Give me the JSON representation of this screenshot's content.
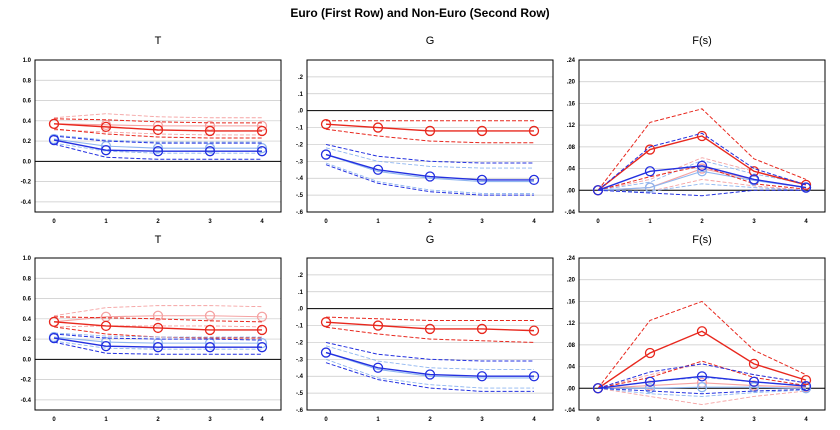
{
  "figure": {
    "title": "Euro (First Row) and Non-Euro (Second Row)"
  },
  "colors": {
    "red": "#e8281e",
    "blue": "#2330e0",
    "light_red": "#f5a3a3",
    "light_blue": "#8fb6f0",
    "grid": "#c8c8c8",
    "zero_line": "#000000"
  },
  "chart_data": [
    {
      "type": "line",
      "title": "T",
      "row": "Euro",
      "x": [
        0,
        1,
        2,
        3,
        4
      ],
      "x_tick_labels": [
        "0",
        "1",
        "2",
        "3",
        "4"
      ],
      "ylim": [
        -0.5,
        1.0
      ],
      "y_ticks": [
        -0.4,
        -0.2,
        0.0,
        0.2,
        0.4,
        0.6,
        0.8,
        1.0
      ],
      "y_tick_labels": [
        "-0.4",
        "-0.2",
        "0.0",
        "0.2",
        "0.4",
        "0.6",
        "0.8",
        "1.0"
      ],
      "zero_line": 0,
      "grid": true,
      "series": [
        {
          "color": "light_red",
          "marker": true,
          "values": [
            0.37,
            0.36,
            0.35,
            0.35,
            0.35
          ],
          "lower": [
            0.31,
            0.29,
            0.27,
            0.26,
            0.26
          ],
          "upper": [
            0.43,
            0.47,
            0.44,
            0.43,
            0.43
          ]
        },
        {
          "color": "red",
          "marker": true,
          "values": [
            0.37,
            0.34,
            0.31,
            0.3,
            0.3
          ],
          "lower": [
            0.32,
            0.27,
            0.24,
            0.23,
            0.23
          ],
          "upper": [
            0.42,
            0.41,
            0.39,
            0.38,
            0.38
          ]
        },
        {
          "color": "light_blue",
          "marker": true,
          "values": [
            0.22,
            0.15,
            0.13,
            0.13,
            0.13
          ],
          "lower": [
            0.18,
            0.1,
            0.08,
            0.08,
            0.08
          ],
          "upper": [
            0.26,
            0.21,
            0.19,
            0.19,
            0.19
          ]
        },
        {
          "color": "blue",
          "marker": true,
          "values": [
            0.21,
            0.11,
            0.1,
            0.1,
            0.1
          ],
          "lower": [
            0.17,
            0.04,
            0.02,
            0.02,
            0.02
          ],
          "upper": [
            0.25,
            0.2,
            0.18,
            0.18,
            0.18
          ]
        }
      ]
    },
    {
      "type": "line",
      "title": "G",
      "row": "Euro",
      "x": [
        0,
        1,
        2,
        3,
        4
      ],
      "x_tick_labels": [
        "0",
        "1",
        "2",
        "3",
        "4"
      ],
      "ylim": [
        -0.6,
        0.3
      ],
      "y_ticks": [
        -0.6,
        -0.5,
        -0.4,
        -0.3,
        -0.2,
        -0.1,
        0.0,
        0.1,
        0.2
      ],
      "y_tick_labels": [
        "-.6",
        "-.5",
        "-.4",
        "-.3",
        "-.2",
        "-.1",
        ".0",
        ".1",
        ".2"
      ],
      "zero_line": 0,
      "grid": true,
      "series": [
        {
          "color": "red",
          "marker": true,
          "values": [
            -0.08,
            -0.1,
            -0.12,
            -0.12,
            -0.12
          ],
          "lower": [
            -0.11,
            -0.15,
            -0.18,
            -0.19,
            -0.19
          ],
          "upper": [
            -0.06,
            -0.06,
            -0.06,
            -0.06,
            -0.06
          ]
        },
        {
          "color": "light_blue",
          "marker": false,
          "values": [
            -0.26,
            -0.36,
            -0.4,
            -0.42,
            -0.42
          ],
          "lower": [
            -0.31,
            -0.42,
            -0.47,
            -0.49,
            -0.49
          ],
          "upper": [
            -0.22,
            -0.3,
            -0.33,
            -0.34,
            -0.34
          ]
        },
        {
          "color": "blue",
          "marker": true,
          "values": [
            -0.26,
            -0.35,
            -0.39,
            -0.41,
            -0.41
          ],
          "lower": [
            -0.32,
            -0.43,
            -0.48,
            -0.5,
            -0.5
          ],
          "upper": [
            -0.2,
            -0.27,
            -0.3,
            -0.31,
            -0.31
          ]
        }
      ]
    },
    {
      "type": "line",
      "title": "F(s)",
      "row": "Euro",
      "x": [
        0,
        1,
        2,
        3,
        4
      ],
      "x_tick_labels": [
        "0",
        "1",
        "2",
        "3",
        "4"
      ],
      "ylim": [
        -0.04,
        0.24
      ],
      "y_ticks": [
        -0.04,
        0.0,
        0.04,
        0.08,
        0.12,
        0.16,
        0.2,
        0.24
      ],
      "y_tick_labels": [
        "-.04",
        ".00",
        ".04",
        ".08",
        ".12",
        ".16",
        ".20",
        ".24"
      ],
      "zero_line": 0,
      "grid": true,
      "series": [
        {
          "color": "light_red",
          "marker": true,
          "values": [
            0.0,
            0.005,
            0.04,
            0.02,
            0.005
          ],
          "lower": [
            0.0,
            -0.002,
            0.02,
            0.008,
            0.0
          ],
          "upper": [
            0.0,
            0.02,
            0.06,
            0.035,
            0.012
          ]
        },
        {
          "color": "light_blue",
          "marker": true,
          "values": [
            0.0,
            0.005,
            0.035,
            0.018,
            0.005
          ],
          "lower": [
            0.0,
            -0.002,
            0.012,
            0.005,
            0.0
          ],
          "upper": [
            0.0,
            0.015,
            0.055,
            0.03,
            0.012
          ]
        },
        {
          "color": "red",
          "marker": true,
          "values": [
            0.0,
            0.075,
            0.1,
            0.035,
            0.01
          ],
          "lower": [
            0.0,
            0.025,
            0.045,
            0.012,
            0.002
          ],
          "upper": [
            0.0,
            0.125,
            0.15,
            0.058,
            0.02
          ]
        },
        {
          "color": "blue",
          "marker": true,
          "values": [
            0.0,
            0.035,
            0.045,
            0.02,
            0.005
          ],
          "lower": [
            0.0,
            -0.005,
            -0.01,
            0.0,
            0.0
          ],
          "upper": [
            0.0,
            0.08,
            0.105,
            0.04,
            0.01
          ]
        }
      ]
    },
    {
      "type": "line",
      "title": "T",
      "row": "Non-Euro",
      "x": [
        0,
        1,
        2,
        3,
        4
      ],
      "x_tick_labels": [
        "0",
        "1",
        "2",
        "3",
        "4"
      ],
      "ylim": [
        -0.5,
        1.0
      ],
      "y_ticks": [
        -0.4,
        -0.2,
        0.0,
        0.2,
        0.4,
        0.6,
        0.8,
        1.0
      ],
      "y_tick_labels": [
        "-0.4",
        "-0.2",
        "0.0",
        "0.2",
        "0.4",
        "0.6",
        "0.8",
        "1.0"
      ],
      "zero_line": 0,
      "grid": true,
      "series": [
        {
          "color": "light_red",
          "marker": true,
          "values": [
            0.37,
            0.42,
            0.43,
            0.43,
            0.42
          ],
          "lower": [
            0.32,
            0.33,
            0.33,
            0.33,
            0.32
          ],
          "upper": [
            0.43,
            0.51,
            0.53,
            0.53,
            0.52
          ]
        },
        {
          "color": "red",
          "marker": true,
          "values": [
            0.37,
            0.33,
            0.31,
            0.29,
            0.29
          ],
          "lower": [
            0.32,
            0.25,
            0.22,
            0.21,
            0.21
          ],
          "upper": [
            0.42,
            0.41,
            0.4,
            0.38,
            0.37
          ]
        },
        {
          "color": "light_blue",
          "marker": true,
          "values": [
            0.22,
            0.17,
            0.16,
            0.16,
            0.16
          ],
          "lower": [
            0.18,
            0.11,
            0.1,
            0.1,
            0.1
          ],
          "upper": [
            0.26,
            0.23,
            0.22,
            0.22,
            0.22
          ]
        },
        {
          "color": "blue",
          "marker": true,
          "values": [
            0.21,
            0.13,
            0.12,
            0.12,
            0.12
          ],
          "lower": [
            0.17,
            0.06,
            0.05,
            0.05,
            0.05
          ],
          "upper": [
            0.25,
            0.21,
            0.2,
            0.2,
            0.19
          ]
        }
      ]
    },
    {
      "type": "line",
      "title": "G",
      "row": "Non-Euro",
      "x": [
        0,
        1,
        2,
        3,
        4
      ],
      "x_tick_labels": [
        "0",
        "1",
        "2",
        "3",
        "4"
      ],
      "ylim": [
        -0.6,
        0.3
      ],
      "y_ticks": [
        -0.6,
        -0.5,
        -0.4,
        -0.3,
        -0.2,
        -0.1,
        0.0,
        0.1,
        0.2
      ],
      "y_tick_labels": [
        "-.6",
        "-.5",
        "-.4",
        "-.3",
        "-.2",
        "-.1",
        ".0",
        ".1",
        ".2"
      ],
      "zero_line": 0,
      "grid": true,
      "series": [
        {
          "color": "red",
          "marker": true,
          "values": [
            -0.08,
            -0.1,
            -0.12,
            -0.12,
            -0.13
          ],
          "lower": [
            -0.11,
            -0.15,
            -0.18,
            -0.19,
            -0.2
          ],
          "upper": [
            -0.05,
            -0.06,
            -0.07,
            -0.07,
            -0.07
          ]
        },
        {
          "color": "light_blue",
          "marker": false,
          "values": [
            -0.26,
            -0.36,
            -0.4,
            -0.41,
            -0.41
          ],
          "lower": [
            -0.3,
            -0.41,
            -0.45,
            -0.47,
            -0.47
          ],
          "upper": [
            -0.22,
            -0.31,
            -0.35,
            -0.36,
            -0.36
          ]
        },
        {
          "color": "blue",
          "marker": true,
          "values": [
            -0.26,
            -0.35,
            -0.39,
            -0.4,
            -0.4
          ],
          "lower": [
            -0.32,
            -0.42,
            -0.47,
            -0.49,
            -0.49
          ],
          "upper": [
            -0.2,
            -0.27,
            -0.3,
            -0.31,
            -0.31
          ]
        }
      ]
    },
    {
      "type": "line",
      "title": "F(s)",
      "row": "Non-Euro",
      "x": [
        0,
        1,
        2,
        3,
        4
      ],
      "x_tick_labels": [
        "0",
        "1",
        "2",
        "3",
        "4"
      ],
      "ylim": [
        -0.04,
        0.24
      ],
      "y_ticks": [
        -0.04,
        0.0,
        0.04,
        0.08,
        0.12,
        0.16,
        0.2,
        0.24
      ],
      "y_tick_labels": [
        "-.04",
        ".00",
        ".04",
        ".08",
        ".12",
        ".16",
        ".20",
        ".24"
      ],
      "zero_line": 0,
      "grid": true,
      "series": [
        {
          "color": "light_red",
          "marker": true,
          "values": [
            0.0,
            0.005,
            0.01,
            0.005,
            0.002
          ],
          "lower": [
            0.0,
            -0.015,
            -0.03,
            -0.015,
            -0.005
          ],
          "upper": [
            0.0,
            0.025,
            0.045,
            0.025,
            0.01
          ]
        },
        {
          "color": "light_blue",
          "marker": true,
          "values": [
            0.0,
            0.0,
            0.002,
            0.002,
            0.0
          ],
          "lower": [
            0.0,
            -0.01,
            -0.015,
            -0.008,
            -0.003
          ],
          "upper": [
            0.0,
            0.012,
            0.02,
            0.012,
            0.005
          ]
        },
        {
          "color": "red",
          "marker": true,
          "values": [
            0.0,
            0.065,
            0.105,
            0.045,
            0.015
          ],
          "lower": [
            0.0,
            0.02,
            0.05,
            0.02,
            0.005
          ],
          "upper": [
            0.0,
            0.125,
            0.16,
            0.07,
            0.025
          ]
        },
        {
          "color": "blue",
          "marker": true,
          "values": [
            0.0,
            0.012,
            0.022,
            0.012,
            0.004
          ],
          "lower": [
            0.0,
            -0.005,
            -0.01,
            -0.005,
            -0.002
          ],
          "upper": [
            0.0,
            0.03,
            0.045,
            0.025,
            0.01
          ]
        }
      ]
    }
  ]
}
